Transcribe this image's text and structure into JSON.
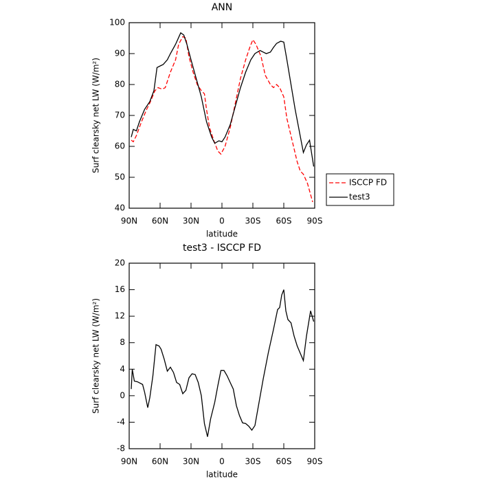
{
  "chart_data": [
    {
      "type": "line",
      "title": "ANN",
      "xlabel": "latitude",
      "ylabel": "Surf clearsky net LW (W/m²)",
      "xlim": [
        90,
        -90
      ],
      "ylim": [
        40,
        100
      ],
      "xticks": [
        {
          "value": 90,
          "label": "90N"
        },
        {
          "value": 60,
          "label": "60N"
        },
        {
          "value": 30,
          "label": "30N"
        },
        0,
        {
          "value": -30,
          "label": "30S"
        },
        {
          "value": -60,
          "label": "60S"
        },
        {
          "value": -90,
          "label": "90S"
        }
      ],
      "yticks": [
        40,
        50,
        60,
        70,
        80,
        90,
        100
      ],
      "legend": "right",
      "series": [
        {
          "name": "ISCCP FD",
          "color": "#ff0000",
          "dash": true,
          "x": [
            88,
            86,
            83,
            78,
            73,
            70,
            65,
            62,
            58,
            55,
            50,
            45,
            42,
            38,
            35,
            32,
            28,
            24,
            20,
            17,
            15,
            12,
            8,
            4,
            1,
            -3,
            -8,
            -13,
            -18,
            -23,
            -27,
            -30,
            -33,
            -38,
            -42,
            -47,
            -50,
            -53,
            -56,
            -60,
            -63,
            -68,
            -73,
            -76,
            -79,
            -83,
            -88
          ],
          "values": [
            62,
            61.5,
            63.5,
            68,
            72,
            74,
            78,
            79,
            78.5,
            79,
            84,
            88,
            93,
            95.5,
            95,
            89,
            84,
            80,
            78,
            77,
            72,
            66,
            62,
            58.5,
            57.5,
            60,
            66,
            74,
            82,
            88,
            92,
            94.5,
            93,
            89,
            83,
            80,
            79,
            80,
            79,
            76,
            69,
            62,
            55,
            52,
            51,
            48,
            42
          ]
        },
        {
          "name": "test3",
          "color": "#000000",
          "dash": false,
          "x": [
            88,
            86,
            83,
            80,
            75,
            70,
            66,
            63,
            60,
            57,
            53,
            50,
            45,
            40,
            37,
            34,
            30,
            25,
            20,
            15,
            10,
            7,
            3,
            0,
            -3,
            -8,
            -13,
            -18,
            -23,
            -28,
            -32,
            -37,
            -40,
            -43,
            -47,
            -50,
            -53,
            -57,
            -60,
            -63,
            -67,
            -71,
            -75,
            -79,
            -82,
            -85,
            -89
          ],
          "values": [
            63,
            65.5,
            65,
            68,
            72,
            74.5,
            78,
            85.5,
            86,
            86.5,
            88,
            90,
            93,
            96.7,
            96,
            93,
            88,
            82,
            76,
            68,
            63,
            61,
            61.8,
            61.5,
            63,
            67,
            73,
            79,
            84,
            88,
            90,
            91,
            90.5,
            90,
            90.5,
            92,
            93.3,
            94,
            93.7,
            88,
            80,
            72,
            65,
            58,
            60.5,
            62,
            53.5
          ]
        }
      ]
    },
    {
      "type": "line",
      "title": "test3 - ISCCP FD",
      "xlabel": "latitude",
      "ylabel": "Surf clearsky net LW (W/m²)",
      "xlim": [
        90,
        -90
      ],
      "ylim": [
        -8,
        20
      ],
      "xticks": [
        {
          "value": 90,
          "label": "90N"
        },
        {
          "value": 60,
          "label": "60N"
        },
        {
          "value": 30,
          "label": "30N"
        },
        0,
        {
          "value": -30,
          "label": "30S"
        },
        {
          "value": -60,
          "label": "60S"
        },
        {
          "value": -90,
          "label": "90S"
        }
      ],
      "yticks": [
        -8,
        -4,
        0,
        4,
        8,
        12,
        16,
        20
      ],
      "series": [
        {
          "color": "#000000",
          "dash": false,
          "x": [
            88,
            87,
            85,
            82,
            77,
            75,
            72,
            70,
            67,
            64,
            61,
            59,
            56,
            53,
            50,
            47,
            44,
            41,
            38,
            35,
            32,
            29,
            26,
            23,
            20,
            17,
            14,
            11,
            7,
            4,
            1,
            -2,
            -5,
            -8,
            -11,
            -14,
            -17,
            -20,
            -23,
            -26,
            -29,
            -32,
            -36,
            -40,
            -45,
            -50,
            -54,
            -56,
            -58,
            -60,
            -62,
            -64,
            -67,
            -70,
            -73,
            -79,
            -82,
            -86,
            -89
          ],
          "values": [
            1,
            4,
            2.2,
            2.1,
            1.7,
            0.5,
            -1.8,
            -0.3,
            3,
            7.7,
            7.5,
            7,
            5.5,
            3.7,
            4.3,
            3.5,
            2,
            1.7,
            0.3,
            0.8,
            2.7,
            3.3,
            3.2,
            2,
            0,
            -4.2,
            -6.2,
            -3.5,
            -1,
            1.5,
            3.8,
            3.8,
            3,
            2,
            1,
            -1.5,
            -3,
            -4.1,
            -4.2,
            -4.6,
            -5.2,
            -4.5,
            -1,
            2.5,
            6.5,
            10,
            13,
            13.3,
            15.2,
            16,
            12.8,
            11.5,
            11,
            9,
            7.5,
            5.3,
            9,
            12.8,
            11.2
          ]
        }
      ]
    }
  ]
}
